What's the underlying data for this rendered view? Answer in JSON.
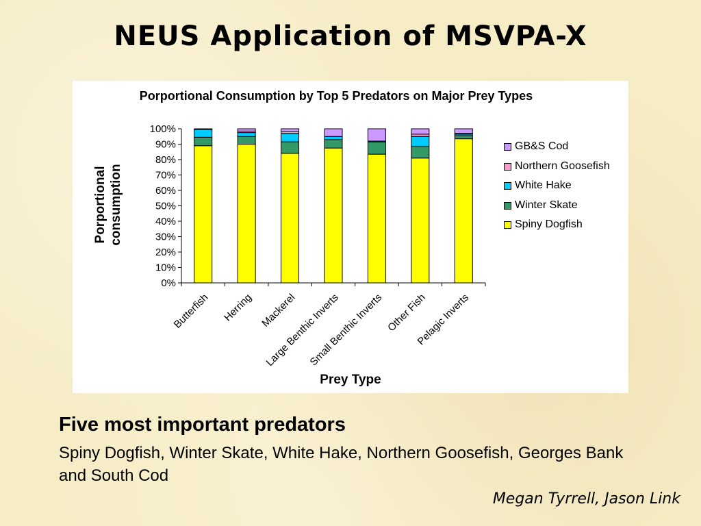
{
  "slide": {
    "title": "NEUS Application of MSVPA-X",
    "predators_heading": "Five most important predators",
    "predators_text": "Spiny Dogfish, Winter Skate, White Hake, Northern Goosefish, Georges Bank and South Cod",
    "authors": "Megan Tyrrell, Jason Link"
  },
  "chart_data": {
    "type": "bar",
    "stacked": true,
    "percent": true,
    "title": "Porportional Consumption by Top 5 Predators on  Major Prey Types",
    "xlabel": "Prey Type",
    "ylabel": "Porportional consumption",
    "ylim": [
      0,
      100
    ],
    "y_ticks": [
      "0%",
      "10%",
      "20%",
      "30%",
      "40%",
      "50%",
      "60%",
      "70%",
      "80%",
      "90%",
      "100%"
    ],
    "categories": [
      "Butterfish",
      "Herring",
      "Mackerel",
      "Large Benthic Inverts",
      "Small Benthic Inverts",
      "Other Fish",
      "Pelagic Inverts"
    ],
    "legend_position": "right",
    "series": [
      {
        "name": "Spiny Dogfish",
        "color": "#ffff00",
        "values": [
          89,
          90,
          84,
          87.5,
          83.5,
          81,
          93.5
        ]
      },
      {
        "name": "Winter Skate",
        "color": "#339966",
        "values": [
          5.5,
          5,
          7.5,
          5.5,
          8,
          7.5,
          2
        ]
      },
      {
        "name": "White Hake",
        "color": "#00ccff",
        "values": [
          5,
          2.5,
          5.5,
          2,
          0.5,
          6.5,
          1
        ]
      },
      {
        "name": "Northern Goosefish",
        "color": "#ff99cc",
        "values": [
          0.5,
          1,
          1,
          0,
          0,
          1.5,
          0.5
        ]
      },
      {
        "name": "GB&S Cod",
        "color": "#cc99ff",
        "values": [
          0,
          1.5,
          2,
          5,
          8,
          3.5,
          3
        ]
      }
    ]
  }
}
